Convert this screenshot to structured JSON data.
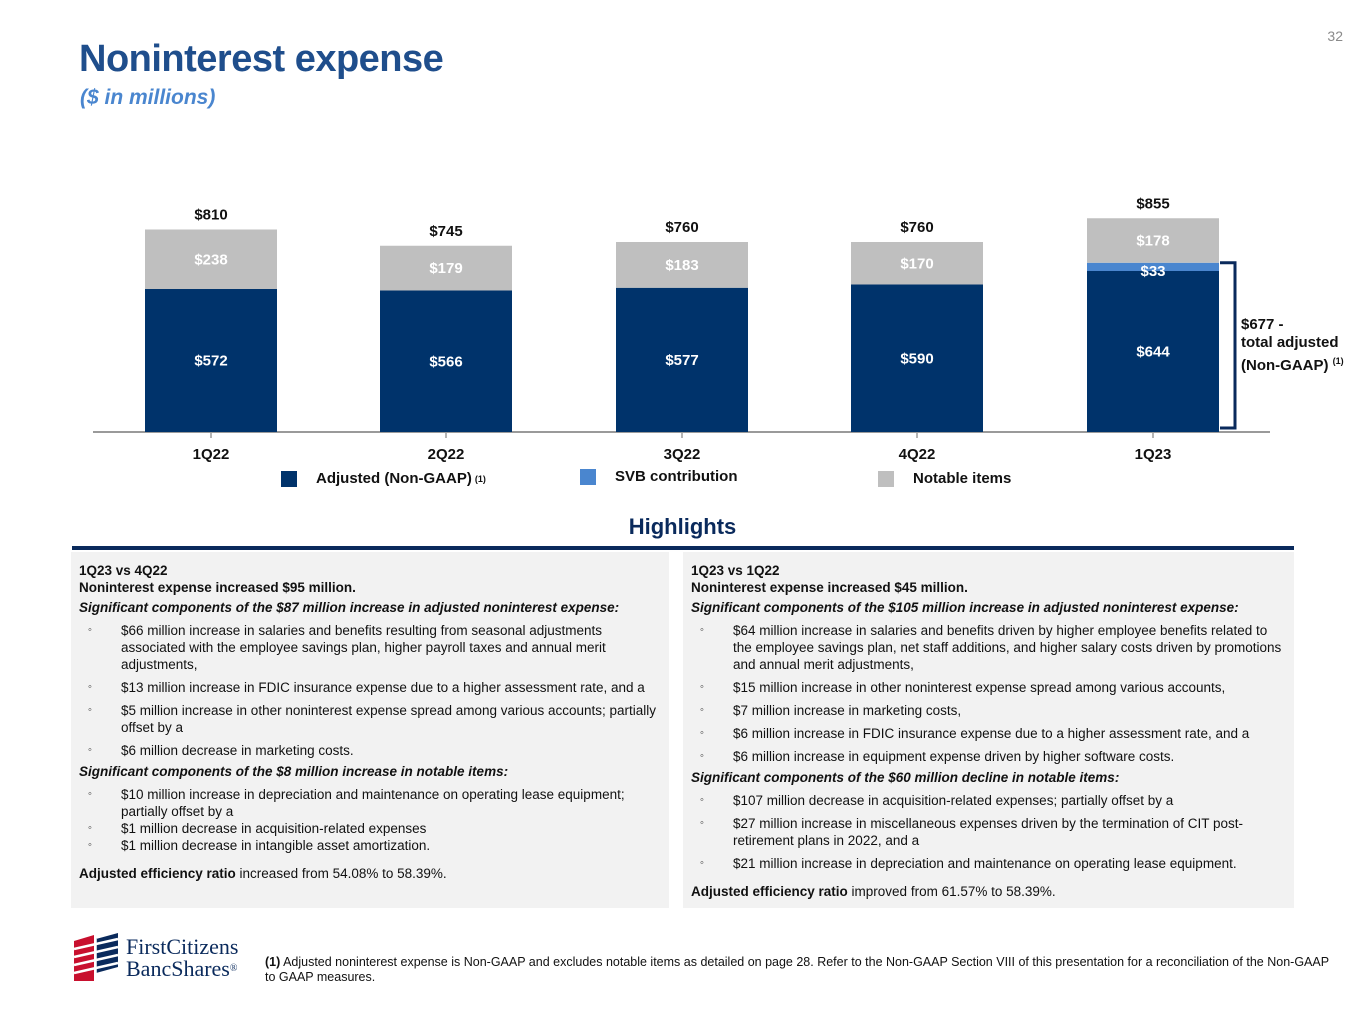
{
  "page_number": "32",
  "title": "Noninterest expense",
  "subtitle": "($ in millions)",
  "colors": {
    "adjusted": "#00336b",
    "svb": "#4a86cf",
    "notable": "#bfbfbf",
    "title": "#1f4e8c"
  },
  "chart_data": {
    "type": "bar",
    "stacked": true,
    "categories": [
      "1Q22",
      "2Q22",
      "3Q22",
      "4Q22",
      "1Q23"
    ],
    "series": [
      {
        "name": "Adjusted (Non-GAAP)",
        "values": [
          572,
          566,
          577,
          590,
          644
        ],
        "labels": [
          "$572",
          "$566",
          "$577",
          "$590",
          "$644"
        ]
      },
      {
        "name": "SVB contribution",
        "values": [
          0,
          0,
          0,
          0,
          33
        ],
        "labels": [
          "",
          "",
          "",
          "",
          "$33"
        ]
      },
      {
        "name": "Notable items",
        "values": [
          238,
          179,
          183,
          170,
          178
        ],
        "labels": [
          "$238",
          "$179",
          "$183",
          "$170",
          "$178"
        ]
      }
    ],
    "totals": [
      810,
      745,
      760,
      760,
      855
    ],
    "total_labels": [
      "$810",
      "$745",
      "$760",
      "$760",
      "$855"
    ],
    "ylim": [
      0,
      855
    ]
  },
  "legend": {
    "adjusted": "Adjusted (Non-GAAP)",
    "adjusted_note": "(1)",
    "svb": "SVB contribution",
    "notable": "Notable items"
  },
  "bracket": {
    "line1": "$677 -",
    "line2": "total adjusted",
    "line3": "(Non-GAAP)",
    "note": "(1)"
  },
  "highlights_title": "Highlights",
  "left_panel": {
    "heading": "1Q23 vs 4Q22",
    "summary": "Noninterest expense increased $95 million.",
    "sig1": "Significant components of the $87 million increase in adjusted noninterest expense:",
    "items1": [
      "$66 million increase in salaries and benefits resulting from seasonal adjustments associated with the employee savings plan, higher payroll taxes and annual merit adjustments,",
      "$13 million increase in FDIC insurance expense due to a higher assessment rate, and a",
      "$5 million increase in other noninterest expense spread among various accounts; partially offset by a",
      "$6 million decrease in marketing costs."
    ],
    "sig2": "Significant components of the $8 million increase in notable items:",
    "items2": [
      "$10 million increase in depreciation and maintenance on operating lease equipment; partially offset by a",
      "$1 million decrease in acquisition-related expenses",
      "$1 million decrease in intangible asset amortization."
    ],
    "eff_label": "Adjusted efficiency ratio",
    "eff_text": " increased from 54.08% to 58.39%."
  },
  "right_panel": {
    "heading": "1Q23 vs 1Q22",
    "summary": "Noninterest expense increased $45 million.",
    "sig1": "Significant components of the $105 million increase in adjusted noninterest expense:",
    "items1": [
      "$64 million increase in salaries and benefits driven by higher employee benefits related to the employee savings plan, net staff additions, and higher salary costs driven by promotions and annual merit adjustments,",
      "$15 million increase in other noninterest expense spread among various accounts,",
      "$7 million increase in marketing costs,",
      "$6 million increase in FDIC insurance expense due to a higher assessment rate, and a",
      "$6 million increase in equipment expense driven by higher software costs."
    ],
    "sig2": "Significant components of the $60 million decline in notable items:",
    "items2": [
      "$107 million decrease in acquisition-related expenses; partially offset by a",
      "$27 million increase in miscellaneous expenses driven by the termination of CIT post-retirement plans in 2022, and a",
      "$21 million increase in depreciation and maintenance on operating lease equipment."
    ],
    "eff_label": "Adjusted efficiency ratio",
    "eff_text": " improved from 61.57% to 58.39%."
  },
  "logo": {
    "line1": "FirstCitizens",
    "line2": "BancShares",
    "mark": "®"
  },
  "footnote": {
    "marker": "(1)",
    "text": " Adjusted noninterest expense is Non-GAAP and excludes notable items as detailed on page 28. Refer to the Non-GAAP Section VIII of this presentation for a reconciliation of the Non-GAAP to GAAP measures."
  }
}
